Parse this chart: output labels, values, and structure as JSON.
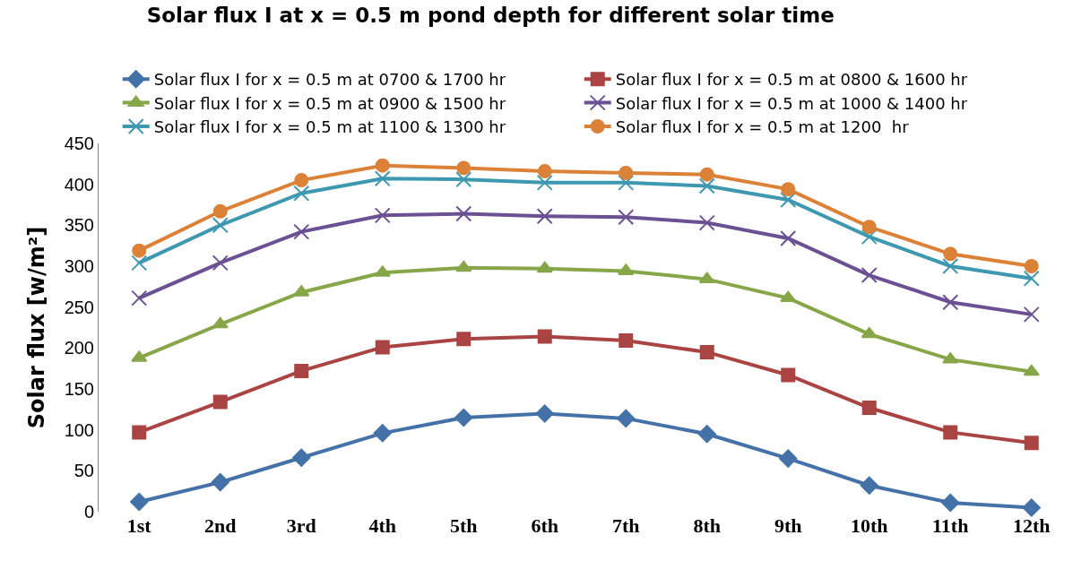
{
  "chart_data": {
    "type": "line",
    "title": "Solar flux I at x = 0.5 m pond depth for different solar time",
    "ylabel": "Solar flux [w/m²]",
    "categories": [
      "1st",
      "2nd",
      "3rd",
      "4th",
      "5th",
      "6th",
      "7th",
      "8th",
      "9th",
      "10th",
      "11th",
      "12th"
    ],
    "ylim": [
      0,
      450
    ],
    "yticks": [
      0,
      50,
      100,
      150,
      200,
      250,
      300,
      350,
      400,
      450
    ],
    "legend": "top",
    "series": [
      {
        "name": "Solar flux I for x = 0.5 m at 0700 & 1700 hr",
        "color": "#4472a8",
        "marker": "diamond",
        "values": [
          12,
          36,
          66,
          96,
          115,
          120,
          114,
          95,
          65,
          32,
          11,
          5
        ]
      },
      {
        "name": "Solar flux I for x = 0.5 m at 0800 & 1600 hr",
        "color": "#a94442",
        "marker": "square",
        "values": [
          97,
          134,
          172,
          201,
          211,
          214,
          209,
          195,
          167,
          127,
          97,
          84
        ]
      },
      {
        "name": "Solar flux I for x = 0.5 m at 0900 & 1500 hr",
        "color": "#86a648",
        "marker": "triangle",
        "values": [
          188,
          229,
          268,
          292,
          298,
          297,
          294,
          284,
          261,
          217,
          186,
          171
        ]
      },
      {
        "name": "Solar flux I for x = 0.5 m at 1000 & 1400 hr",
        "color": "#6b5193",
        "marker": "cross",
        "values": [
          261,
          304,
          342,
          362,
          364,
          361,
          360,
          353,
          334,
          289,
          256,
          241
        ]
      },
      {
        "name": "Solar flux I for x = 0.5 m at 1100 & 1300 hr",
        "color": "#3d98b0",
        "marker": "cross",
        "values": [
          304,
          350,
          389,
          407,
          406,
          402,
          402,
          398,
          381,
          336,
          300,
          285
        ]
      },
      {
        "name": "Solar flux I for x = 0.5 m at 1200  hr",
        "color": "#db8238",
        "marker": "circle",
        "values": [
          319,
          367,
          405,
          423,
          420,
          416,
          414,
          412,
          394,
          348,
          315,
          300
        ]
      }
    ]
  }
}
